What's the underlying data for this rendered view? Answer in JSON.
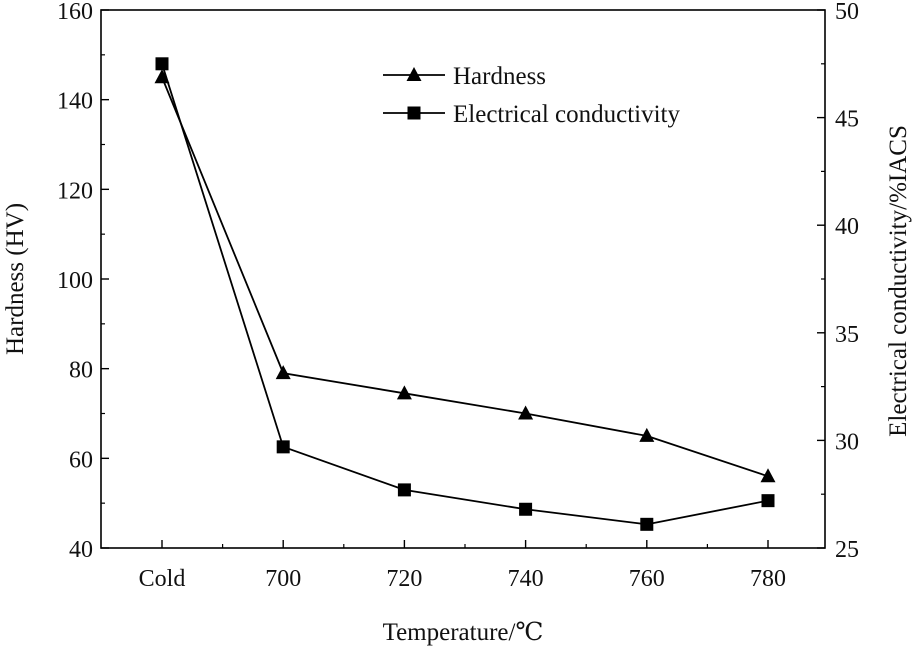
{
  "chart_data": {
    "type": "line",
    "categories": [
      "Cold",
      "700",
      "720",
      "740",
      "760",
      "780"
    ],
    "xlabel": "Temperature/℃",
    "ylabel": "Hardness (HV)",
    "y2label": "Electrical conductivity/%IACS",
    "ylim": [
      40,
      160
    ],
    "y2lim": [
      25,
      50
    ],
    "yticks": [
      "40",
      "60",
      "80",
      "100",
      "120",
      "140",
      "160"
    ],
    "y2ticks": [
      "25",
      "30",
      "35",
      "40",
      "45",
      "50"
    ],
    "legend_position": "top-right",
    "grid": false,
    "series": [
      {
        "name": "Hardness",
        "axis": "left",
        "marker": "triangle",
        "values": [
          145,
          79,
          74.5,
          70,
          65,
          56
        ]
      },
      {
        "name": "Electrical conductivity",
        "axis": "right",
        "marker": "square",
        "values": [
          47.5,
          29.7,
          27.7,
          26.8,
          26.1,
          27.2
        ]
      }
    ]
  }
}
